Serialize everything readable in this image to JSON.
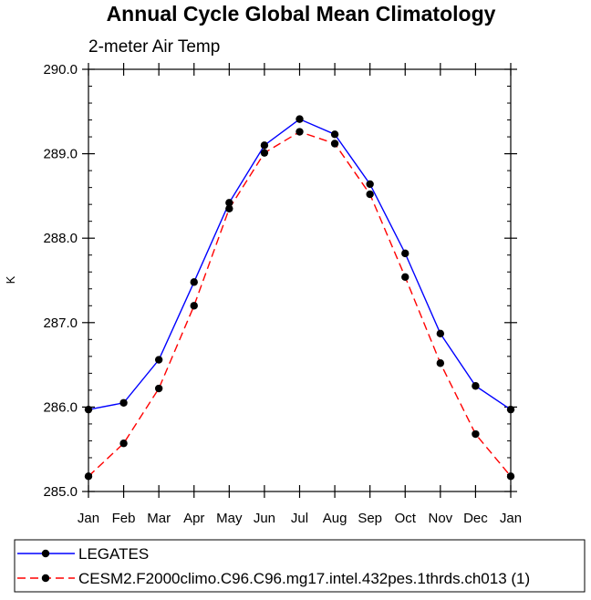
{
  "chart_data": {
    "type": "line",
    "title": "Annual Cycle Global Mean Climatology",
    "subtitle": "2-meter Air Temp",
    "xlabel": "",
    "ylabel": "K",
    "categories": [
      "Jan",
      "Feb",
      "Mar",
      "Apr",
      "May",
      "Jun",
      "Jul",
      "Aug",
      "Sep",
      "Oct",
      "Nov",
      "Dec",
      "Jan"
    ],
    "ylim": [
      285.0,
      290.0
    ],
    "yticks": [
      "285.0",
      "286.0",
      "287.0",
      "288.0",
      "289.0",
      "290.0"
    ],
    "series": [
      {
        "name": "LEGATES",
        "color": "#0000ff",
        "dash": "solid",
        "values": [
          285.97,
          286.05,
          286.56,
          287.48,
          288.42,
          289.1,
          289.41,
          289.23,
          288.64,
          287.82,
          286.87,
          286.25,
          285.97
        ]
      },
      {
        "name": "CESM2.F2000climo.C96.C96.mg17.intel.432pes.1thrds.ch013 (1)",
        "color": "#ff0000",
        "dash": "dashed",
        "values": [
          285.18,
          285.57,
          286.22,
          287.2,
          288.35,
          289.01,
          289.26,
          289.12,
          288.52,
          287.54,
          286.52,
          285.68,
          285.18
        ]
      }
    ],
    "marker_color": "#000000",
    "legend_position": "bottom"
  }
}
